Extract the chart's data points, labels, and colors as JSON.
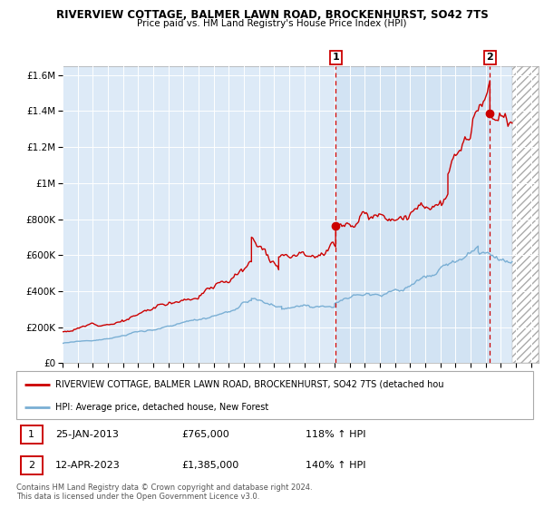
{
  "title": "RIVERVIEW COTTAGE, BALMER LAWN ROAD, BROCKENHURST, SO42 7TS",
  "subtitle": "Price paid vs. HM Land Registry's House Price Index (HPI)",
  "ylabel_ticks": [
    "£0",
    "£200K",
    "£400K",
    "£600K",
    "£800K",
    "£1M",
    "£1.2M",
    "£1.4M",
    "£1.6M"
  ],
  "ylabel_values": [
    0,
    200000,
    400000,
    600000,
    800000,
    1000000,
    1200000,
    1400000,
    1600000
  ],
  "ylim": [
    0,
    1650000
  ],
  "xlim_start": 1995.0,
  "xlim_end": 2026.5,
  "x_ticks": [
    1995,
    1996,
    1997,
    1998,
    1999,
    2000,
    2001,
    2002,
    2003,
    2004,
    2005,
    2006,
    2007,
    2008,
    2009,
    2010,
    2011,
    2012,
    2013,
    2014,
    2015,
    2016,
    2017,
    2018,
    2019,
    2020,
    2021,
    2022,
    2023,
    2024,
    2025,
    2026
  ],
  "sale1_x": 2013.07,
  "sale1_y": 765000,
  "sale1_label": "1",
  "sale1_date": "25-JAN-2013",
  "sale1_price": "£765,000",
  "sale1_hpi": "118% ↑ HPI",
  "sale2_x": 2023.28,
  "sale2_y": 1385000,
  "sale2_label": "2",
  "sale2_date": "12-APR-2023",
  "sale2_price": "£1,385,000",
  "sale2_hpi": "140% ↑ HPI",
  "red_color": "#cc0000",
  "blue_color": "#7aafd4",
  "shade_color": "#d0e4f7",
  "hatch_end": 2024.75,
  "legend_line1": "RIVERVIEW COTTAGE, BALMER LAWN ROAD, BROCKENHURST, SO42 7TS (detached hou",
  "legend_line2": "HPI: Average price, detached house, New Forest",
  "footer1": "Contains HM Land Registry data © Crown copyright and database right 2024.",
  "footer2": "This data is licensed under the Open Government Licence v3.0.",
  "background_color": "#ffffff",
  "plot_bg_color": "#ddeaf7",
  "grid_color": "#ffffff"
}
